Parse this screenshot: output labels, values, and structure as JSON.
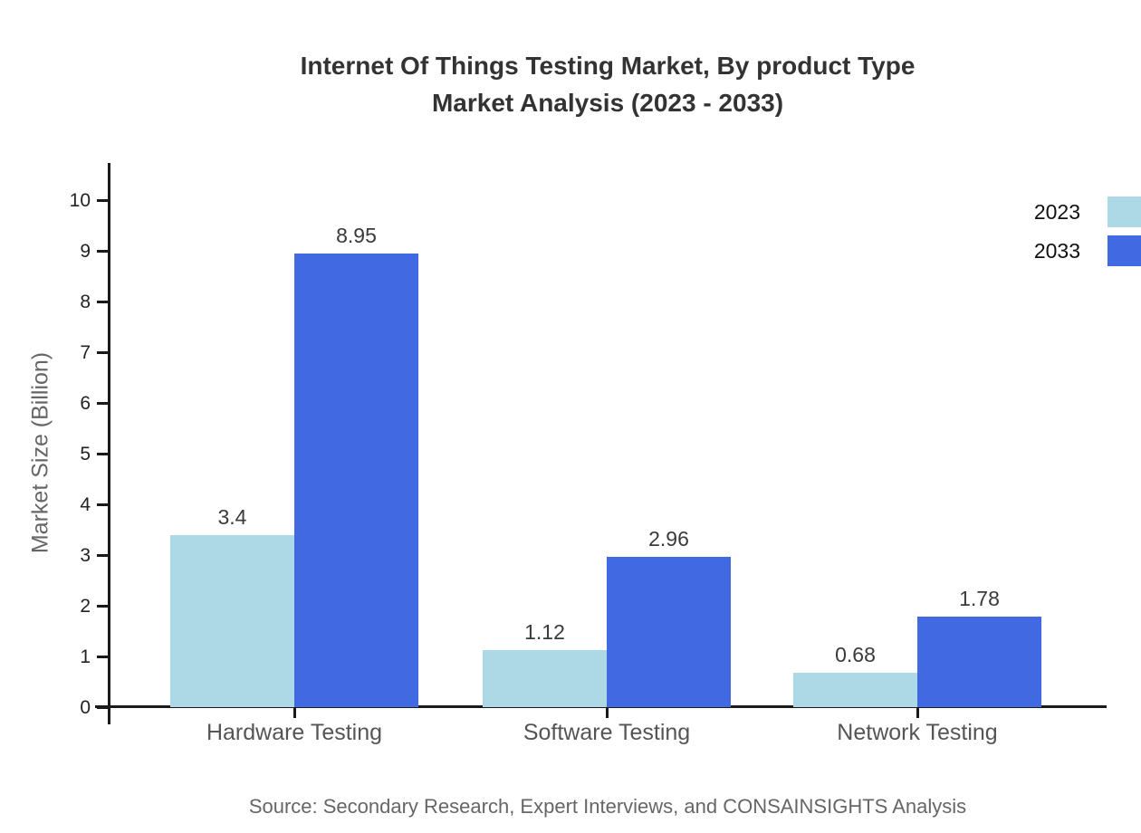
{
  "title": {
    "line1": "Internet Of Things Testing Market, By product Type",
    "line2": "Market Analysis (2023 - 2033)"
  },
  "source": "Source: Secondary Research, Expert Interviews, and CONSAINSIGHTS Analysis",
  "chart_data": {
    "type": "bar",
    "title": "Internet Of Things Testing Market, By product Type Market Analysis (2023 - 2033)",
    "categories": [
      "Hardware Testing",
      "Software Testing",
      "Network Testing"
    ],
    "series": [
      {
        "name": "2023",
        "color": "#ADD8E6",
        "values": [
          3.4,
          1.12,
          0.68
        ],
        "labels": [
          "3.4",
          "1.12",
          "0.68"
        ]
      },
      {
        "name": "2033",
        "color": "#4169E1",
        "values": [
          8.95,
          2.96,
          1.78
        ],
        "labels": [
          "8.95",
          "2.96",
          "1.78"
        ]
      }
    ],
    "xlabel": "",
    "ylabel": "Market Size (Billion)",
    "ylim": [
      0,
      10
    ],
    "yticks": [
      0,
      1,
      2,
      3,
      4,
      5,
      6,
      7,
      8,
      9,
      10
    ],
    "grid": false,
    "legend_position": "top-right"
  },
  "colors": {
    "axis": "#1a1a1a",
    "title_text": "#333333",
    "value_text": "#3a3a3a",
    "category_text": "#555555",
    "source_text": "#666666",
    "series_2023": "#ADD8E6",
    "series_2033": "#4169E1"
  }
}
